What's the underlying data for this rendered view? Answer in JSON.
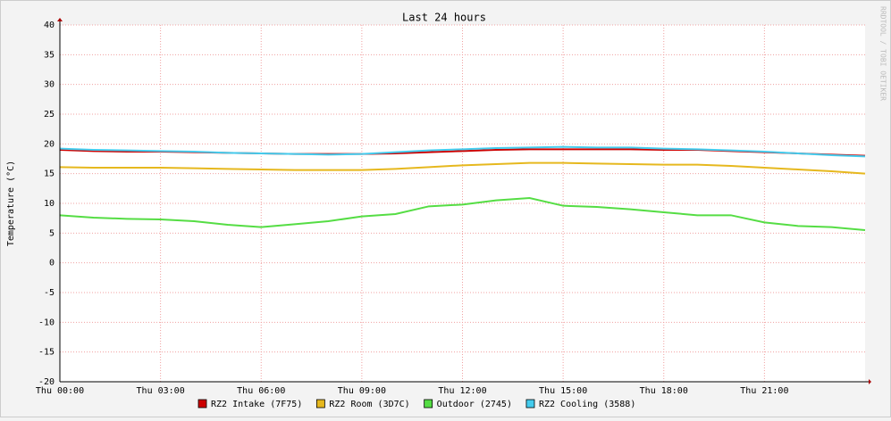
{
  "chart_data": {
    "type": "line",
    "title": "Last 24 hours",
    "ylabel": "Temperature (°C)",
    "watermark": "RRDTOOL / TOBI OETIKER",
    "x": [
      0,
      1,
      2,
      3,
      4,
      5,
      6,
      7,
      8,
      9,
      10,
      11,
      12,
      13,
      14,
      15,
      16,
      17,
      18,
      19,
      20,
      21,
      22,
      23,
      24
    ],
    "xlim": [
      0,
      24
    ],
    "xticks": [
      {
        "value": 0,
        "label": "Thu 00:00"
      },
      {
        "value": 3,
        "label": "Thu 03:00"
      },
      {
        "value": 6,
        "label": "Thu 06:00"
      },
      {
        "value": 9,
        "label": "Thu 09:00"
      },
      {
        "value": 12,
        "label": "Thu 12:00"
      },
      {
        "value": 15,
        "label": "Thu 15:00"
      },
      {
        "value": 18,
        "label": "Thu 18:00"
      },
      {
        "value": 21,
        "label": "Thu 21:00"
      }
    ],
    "ylim": [
      -20,
      40
    ],
    "yticks": [
      -20,
      -15,
      -10,
      -5,
      0,
      5,
      10,
      15,
      20,
      25,
      30,
      35,
      40
    ],
    "grid": true,
    "series": [
      {
        "name": "RZ2 Intake (7F75)",
        "color": "#cc0000",
        "values": [
          19,
          18.8,
          18.7,
          18.7,
          18.6,
          18.5,
          18.4,
          18.3,
          18.3,
          18.3,
          18.4,
          18.6,
          18.8,
          19,
          19.1,
          19.1,
          19.1,
          19.1,
          19,
          19,
          18.8,
          18.6,
          18.4,
          18.2,
          18
        ]
      },
      {
        "name": "RZ2 Room (3D7C)",
        "color": "#e6b81e",
        "values": [
          16.1,
          16,
          16,
          16,
          15.9,
          15.8,
          15.7,
          15.6,
          15.6,
          15.6,
          15.8,
          16.1,
          16.4,
          16.6,
          16.8,
          16.8,
          16.7,
          16.6,
          16.5,
          16.5,
          16.3,
          16,
          15.7,
          15.4,
          15
        ]
      },
      {
        "name": "Outdoor (2745)",
        "color": "#55dd44",
        "values": [
          8,
          7.6,
          7.4,
          7.3,
          7,
          6.4,
          6,
          6.5,
          7,
          7.8,
          8.2,
          9.5,
          9.8,
          10.5,
          10.9,
          9.6,
          9.4,
          9,
          8.5,
          8,
          8,
          6.8,
          6.2,
          6,
          5.5
        ]
      },
      {
        "name": "RZ2 Cooling (3588)",
        "color": "#44ccee",
        "values": [
          19.2,
          19,
          18.9,
          18.8,
          18.7,
          18.5,
          18.4,
          18.3,
          18.2,
          18.3,
          18.6,
          18.9,
          19.1,
          19.3,
          19.4,
          19.5,
          19.4,
          19.4,
          19.2,
          19.1,
          18.9,
          18.7,
          18.4,
          18.1,
          17.9
        ]
      }
    ]
  }
}
